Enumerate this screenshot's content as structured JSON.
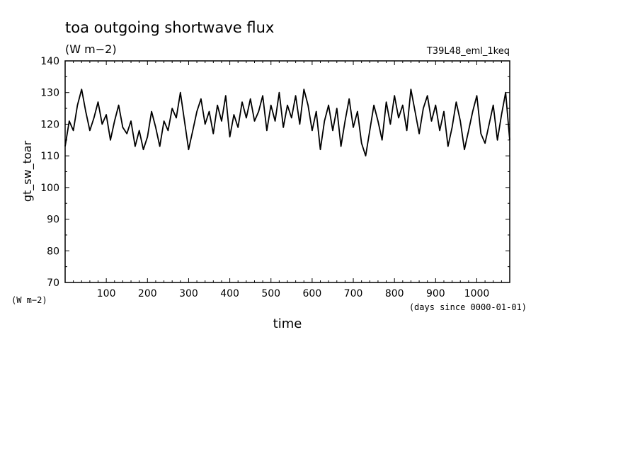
{
  "chart_data": {
    "type": "line",
    "title": "toa outgoing shortwave flux",
    "subtitle": "(W m−2)",
    "run_label": "T39L48_eml_1keq",
    "ylabel": "gt_sw_toar",
    "yunit_label": "(W m−2)",
    "xlabel": "time",
    "xunit_label": "(days since 0000-01-01)",
    "xlim": [
      0,
      1080
    ],
    "ylim": [
      70,
      140
    ],
    "xticks": [
      100,
      200,
      300,
      400,
      500,
      600,
      700,
      800,
      900,
      1000
    ],
    "yticks": [
      70,
      80,
      90,
      100,
      110,
      120,
      130,
      140
    ],
    "grid": false,
    "series": [
      {
        "color": "#000000",
        "x": [
          0,
          10,
          20,
          30,
          40,
          50,
          60,
          70,
          80,
          90,
          100,
          110,
          120,
          130,
          140,
          150,
          160,
          170,
          180,
          190,
          200,
          210,
          220,
          230,
          240,
          250,
          260,
          270,
          280,
          290,
          300,
          310,
          320,
          330,
          340,
          350,
          360,
          370,
          380,
          390,
          400,
          410,
          420,
          430,
          440,
          450,
          460,
          470,
          480,
          490,
          500,
          510,
          520,
          530,
          540,
          550,
          560,
          570,
          580,
          590,
          600,
          610,
          620,
          630,
          640,
          650,
          660,
          670,
          680,
          690,
          700,
          710,
          720,
          730,
          740,
          750,
          760,
          770,
          780,
          790,
          800,
          810,
          820,
          830,
          840,
          850,
          860,
          870,
          880,
          890,
          900,
          910,
          920,
          930,
          940,
          950,
          960,
          970,
          980,
          990,
          1000,
          1010,
          1020,
          1030,
          1040,
          1050,
          1060,
          1070,
          1080
        ],
        "y": [
          113,
          121,
          118,
          126,
          131,
          124,
          118,
          122,
          127,
          120,
          123,
          115,
          121,
          126,
          119,
          117,
          121,
          113,
          118,
          112,
          116,
          124,
          119,
          113,
          121,
          118,
          125,
          122,
          130,
          121,
          112,
          118,
          124,
          128,
          120,
          124,
          117,
          126,
          121,
          129,
          116,
          123,
          119,
          127,
          122,
          128,
          121,
          124,
          129,
          118,
          126,
          121,
          130,
          119,
          126,
          122,
          129,
          120,
          131,
          126,
          118,
          124,
          112,
          121,
          126,
          118,
          125,
          113,
          121,
          128,
          119,
          124,
          114,
          110,
          118,
          126,
          121,
          115,
          127,
          120,
          129,
          122,
          126,
          118,
          131,
          124,
          117,
          125,
          129,
          121,
          126,
          118,
          124,
          113,
          119,
          127,
          121,
          112,
          118,
          124,
          129,
          117,
          114,
          120,
          126,
          115,
          123,
          130,
          115
        ]
      }
    ]
  }
}
